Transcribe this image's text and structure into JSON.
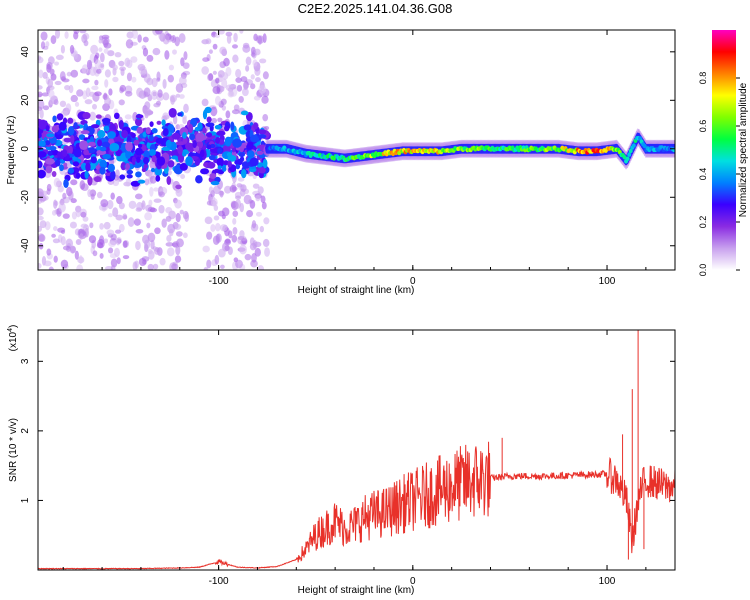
{
  "figure": {
    "title": "C2E2.2025.141.04.36.G08"
  },
  "chart_data": [
    {
      "type": "heatmap",
      "xlabel": "Height of straight line (km)",
      "ylabel": "Frequency (Hz)",
      "xlim": [
        -193,
        135
      ],
      "ylim": [
        -50,
        49
      ],
      "xticks": [
        -100,
        0,
        100
      ],
      "xtick_labels": [
        "-100",
        "0",
        "100"
      ],
      "yticks": [
        -40,
        -20,
        0,
        20,
        40
      ],
      "ytick_labels": [
        "-40",
        "-20",
        "0",
        "20",
        "40"
      ],
      "colorbar": {
        "label": "Normalized spectral amplitude",
        "range": [
          0,
          1
        ],
        "ticks": [
          0.0,
          0.2,
          0.4,
          0.6,
          0.8
        ],
        "tick_labels": [
          "0.0",
          "0.2",
          "0.4",
          "0.6",
          "0.8"
        ],
        "colormap": [
          "#ffffff",
          "#c8a0ee",
          "#8a2be2",
          "#3a00ff",
          "#0080ff",
          "#00e0e0",
          "#00ff40",
          "#80ff00",
          "#ffff00",
          "#ff8000",
          "#ff0000",
          "#ff00c0"
        ]
      },
      "ridge": {
        "x": [
          -75,
          -65,
          -55,
          -45,
          -35,
          -25,
          -15,
          -5,
          5,
          15,
          25,
          35,
          45,
          55,
          65,
          75,
          85,
          95,
          105,
          110,
          113,
          116,
          120,
          130,
          135
        ],
        "frequency": [
          0,
          0,
          -2,
          -3,
          -4,
          -3,
          -2,
          -1,
          -1,
          -1,
          0,
          0,
          0,
          0,
          0,
          0,
          -1,
          -1,
          0,
          -5,
          0,
          5,
          0,
          0,
          0
        ],
        "amplitude": [
          0.35,
          0.4,
          0.45,
          0.5,
          0.55,
          0.6,
          0.7,
          0.75,
          0.75,
          0.7,
          0.6,
          0.6,
          0.55,
          0.55,
          0.6,
          0.65,
          0.8,
          0.85,
          0.65,
          0.5,
          0.45,
          0.5,
          0.4,
          0.4,
          0.4
        ]
      },
      "noise_region": {
        "x": [
          -193,
          -75
        ],
        "frequency": [
          -50,
          49
        ]
      }
    },
    {
      "type": "line",
      "xlabel": "Height of straight line (km)",
      "ylabel": "SNR (10 * v/v)",
      "yscale_label": "(x10",
      "yscale_exp": "4",
      "xlim": [
        -193,
        135
      ],
      "ylim": [
        0,
        3.45
      ],
      "xticks": [
        -100,
        0,
        100
      ],
      "xtick_labels": [
        "-100",
        "0",
        "100"
      ],
      "yticks": [
        1,
        2,
        3
      ],
      "ytick_labels": [
        "1",
        "2",
        "3"
      ],
      "color": "#e8312a",
      "x": [
        -193,
        -180,
        -160,
        -140,
        -120,
        -110,
        -100,
        -95,
        -90,
        -80,
        -70,
        -60,
        -55,
        -50,
        -45,
        -40,
        -35,
        -30,
        -25,
        -20,
        -15,
        -10,
        -5,
        0,
        10,
        20,
        30,
        40,
        50,
        60,
        70,
        80,
        90,
        100,
        105,
        110,
        113,
        115,
        118,
        120,
        125,
        130,
        135
      ],
      "values": [
        0.02,
        0.02,
        0.02,
        0.02,
        0.03,
        0.04,
        0.12,
        0.08,
        0.04,
        0.03,
        0.05,
        0.15,
        0.3,
        0.5,
        0.6,
        0.7,
        0.6,
        0.65,
        0.75,
        0.8,
        0.82,
        0.88,
        0.95,
        1.0,
        1.1,
        1.2,
        1.28,
        1.32,
        1.35,
        1.35,
        1.35,
        1.36,
        1.37,
        1.38,
        1.3,
        1.0,
        0.4,
        0.8,
        1.2,
        1.3,
        1.25,
        1.2,
        1.2
      ],
      "spikes": [
        {
          "x": 113,
          "y": 2.6
        },
        {
          "x": 116,
          "y": 3.45
        },
        {
          "x": 119,
          "y": 0.3
        },
        {
          "x": 46,
          "y": 1.9
        },
        {
          "x": 108,
          "y": 1.95
        },
        {
          "x": 111,
          "y": 0.15
        }
      ]
    }
  ]
}
